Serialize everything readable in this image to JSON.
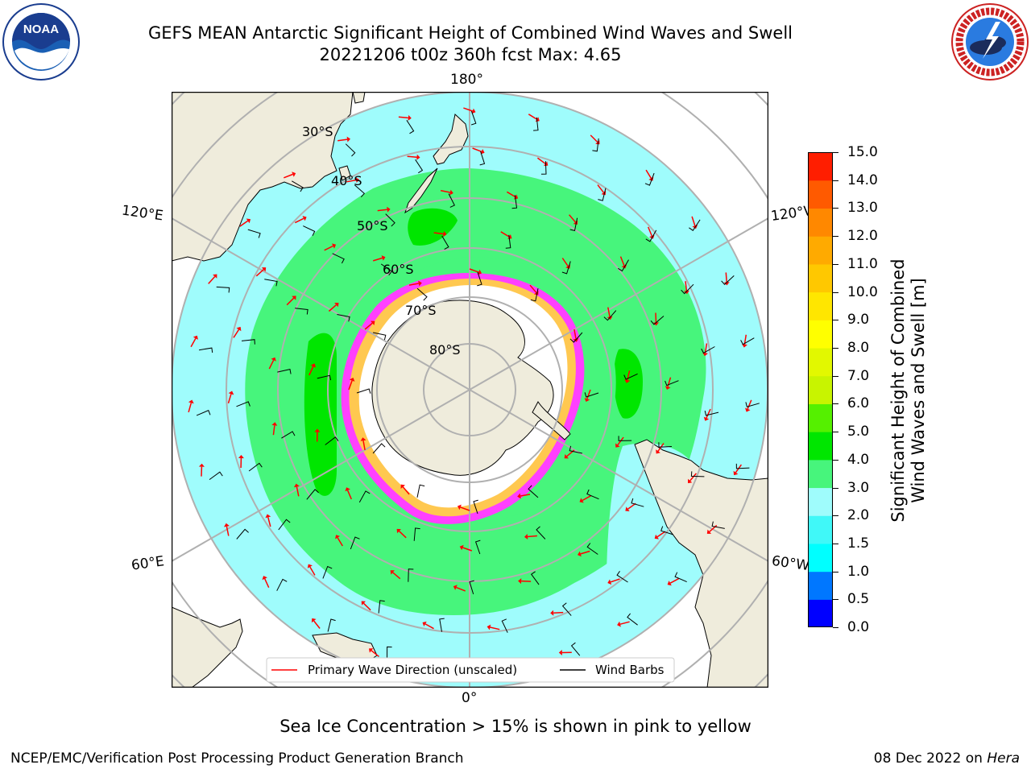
{
  "title": {
    "line1": "GEFS MEAN Antarctic Significant Height of Combined Wind Waves and Swell",
    "line2": "20221206 t00z 360h fcst   Max: 4.65"
  },
  "logos": {
    "left": "NOAA",
    "left_ring": "NATIONAL OCEANIC AND ATMOSPHERIC ADMINISTRATION · U.S. DEPARTMENT OF COMMERCE",
    "right_ring": "NATIONAL WEATHER SERVICE"
  },
  "map": {
    "projection": "south-polar-stereographic",
    "lon_labels": {
      "top": "180°",
      "bottom": "0°",
      "upper_left": "120°E",
      "upper_right": "120°W",
      "lower_left": "60°E",
      "lower_right": "60°W"
    },
    "lat_labels": [
      "30°S",
      "40°S",
      "50°S",
      "60°S",
      "70°S",
      "80°S"
    ],
    "colors": {
      "land": "#efecdc",
      "ocean_low": "#9ffcfc",
      "ocean_mid": "#47f57c",
      "ocean_high": "#00e600",
      "ice": "#ffffff",
      "ice_edge": "#ff40ff",
      "ice_yellow": "#ffc850",
      "arrow": "#ff0000",
      "barb": "#000000",
      "grid": "#b0b0b0"
    }
  },
  "legend": {
    "items": [
      {
        "label": "Primary Wave Direction (unscaled)",
        "color": "#ff0000"
      },
      {
        "label": "Wind Barbs",
        "color": "#000000"
      }
    ]
  },
  "colorbar": {
    "label_line1": "Significant Height of Combined",
    "label_line2": "Wind Waves and Swell [m]",
    "ticks": [
      "0.0",
      "0.5",
      "1.0",
      "1.5",
      "2.0",
      "3.0",
      "4.0",
      "5.0",
      "6.0",
      "7.0",
      "8.0",
      "9.0",
      "10.0",
      "11.0",
      "12.0",
      "13.0",
      "14.0",
      "15.0"
    ],
    "colors": [
      "#0000ff",
      "#0077ff",
      "#00ffff",
      "#40f8f8",
      "#9ffcfc",
      "#47f57c",
      "#00e600",
      "#55f000",
      "#c8f400",
      "#e2f800",
      "#ffff00",
      "#ffe600",
      "#ffc800",
      "#ffaa00",
      "#ff8800",
      "#ff5a00",
      "#ff1e00"
    ]
  },
  "note": "Sea Ice Concentration > 15% is shown in pink to yellow",
  "footer": {
    "credit": "NCEP/EMC/Verification Post Processing Product Generation Branch",
    "date": "08 Dec 2022 on",
    "host": "Hera"
  },
  "chart_data": {
    "type": "heatmap",
    "variable": "Significant Height of Combined Wind Waves and Swell",
    "units": "m",
    "range": [
      0,
      15
    ],
    "max": 4.65
  }
}
